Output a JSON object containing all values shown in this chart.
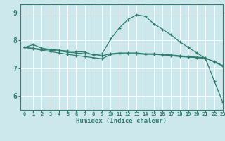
{
  "xlabel": "Humidex (Indice chaleur)",
  "background_color": "#cce8ec",
  "line_color": "#2e7d6e",
  "grid_color": "#ffffff",
  "xlim": [
    -0.5,
    23
  ],
  "ylim": [
    5.5,
    9.3
  ],
  "xticks": [
    0,
    1,
    2,
    3,
    4,
    5,
    6,
    7,
    8,
    9,
    10,
    11,
    12,
    13,
    14,
    15,
    16,
    17,
    18,
    19,
    20,
    21,
    22,
    23
  ],
  "yticks": [
    6,
    7,
    8,
    9
  ],
  "series": [
    {
      "x": [
        0,
        1,
        2,
        3,
        4,
        5,
        6,
        7,
        8,
        9,
        10,
        11,
        12,
        13,
        14,
        15,
        16,
        17,
        18,
        19,
        20,
        21,
        22,
        23
      ],
      "y": [
        7.75,
        7.85,
        7.72,
        7.68,
        7.65,
        7.62,
        7.6,
        7.58,
        7.48,
        7.52,
        8.05,
        8.45,
        8.75,
        8.92,
        8.87,
        8.6,
        8.4,
        8.2,
        7.95,
        7.75,
        7.55,
        7.35,
        6.55,
        5.78
      ]
    },
    {
      "x": [
        0,
        1,
        2,
        3,
        4,
        5,
        6,
        7,
        8,
        9,
        10,
        11,
        12,
        13,
        14,
        15,
        16,
        17,
        18,
        19,
        20,
        21,
        22,
        23
      ],
      "y": [
        7.75,
        7.72,
        7.68,
        7.65,
        7.62,
        7.58,
        7.55,
        7.52,
        7.5,
        7.45,
        7.52,
        7.55,
        7.55,
        7.55,
        7.52,
        7.52,
        7.5,
        7.48,
        7.45,
        7.42,
        7.4,
        7.38,
        7.22,
        7.08
      ]
    },
    {
      "x": [
        0,
        1,
        2,
        3,
        4,
        5,
        6,
        7,
        8,
        9,
        10,
        11,
        12,
        13,
        14,
        15,
        16,
        17,
        18,
        19,
        20,
        21,
        22,
        23
      ],
      "y": [
        7.75,
        7.7,
        7.65,
        7.6,
        7.55,
        7.5,
        7.46,
        7.42,
        7.38,
        7.34,
        7.5,
        7.52,
        7.52,
        7.52,
        7.5,
        7.5,
        7.48,
        7.45,
        7.42,
        7.4,
        7.38,
        7.35,
        7.25,
        7.1
      ]
    }
  ]
}
